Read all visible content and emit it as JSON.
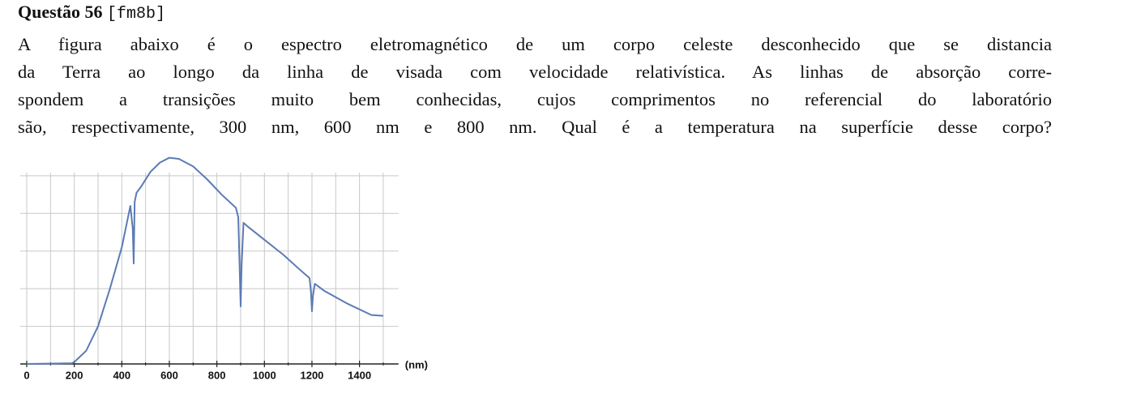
{
  "header": {
    "title": "Questão 56",
    "tag": "[fm8b]"
  },
  "body": {
    "lines": [
      "A figura abaixo é o espectro eletromagnético de um corpo celeste desconhecido que se distancia",
      "da Terra ao longo da linha de visada com velocidade relativística. As linhas de absorção corre-",
      "spondem a transições muito bem conhecidas, cujos comprimentos no referencial do laboratório",
      "são, respectivamente, 300 nm, 600 nm e 800 nm. Qual é a temperatura na superfície desse corpo?"
    ]
  },
  "figure": {
    "type": "line",
    "x": [
      0,
      190,
      200,
      250,
      300,
      350,
      400,
      436,
      446,
      450,
      454,
      462,
      480,
      520,
      560,
      600,
      640,
      700,
      760,
      820,
      880,
      890,
      896,
      900,
      904,
      912,
      930,
      1000,
      1080,
      1150,
      1190,
      1196,
      1200,
      1204,
      1212,
      1250,
      1350,
      1450,
      1500
    ],
    "values": [
      0,
      0.02,
      0.05,
      0.35,
      1.0,
      2.0,
      3.1,
      4.2,
      3.6,
      2.67,
      4.3,
      4.55,
      4.7,
      5.1,
      5.35,
      5.48,
      5.45,
      5.25,
      4.9,
      4.5,
      4.15,
      3.9,
      2.5,
      1.53,
      2.6,
      3.75,
      3.65,
      3.3,
      2.9,
      2.5,
      2.28,
      1.9,
      1.4,
      1.8,
      2.13,
      1.95,
      1.6,
      1.3,
      1.28
    ],
    "color": "#5b7bb5",
    "xlim": [
      0,
      1530
    ],
    "ylim": [
      0,
      5.6
    ],
    "xticks": [
      0,
      200,
      400,
      600,
      800,
      1000,
      1200,
      1400
    ],
    "xminor": [
      100,
      300,
      500,
      700,
      900,
      1100,
      1300,
      1500
    ],
    "yticks": [
      0,
      1,
      2,
      3,
      4,
      5
    ],
    "grid": true,
    "x_unit": "(nm)"
  }
}
